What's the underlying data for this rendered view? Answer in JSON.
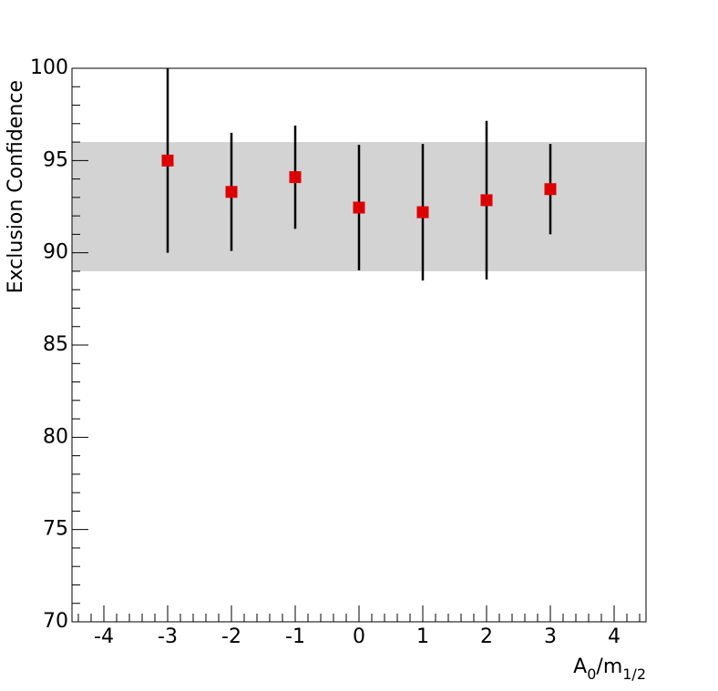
{
  "chart_data": {
    "type": "errorbar",
    "ylabel": "Exclusion Confidence",
    "xlabel": [
      "A",
      "0",
      "/m",
      "1/2"
    ],
    "x": [
      -3,
      -2,
      -1,
      0,
      1,
      2,
      3
    ],
    "values": [
      95.0,
      93.3,
      94.1,
      92.45,
      92.2,
      92.85,
      93.45
    ],
    "errors": [
      5.0,
      3.2,
      2.8,
      3.4,
      3.7,
      4.3,
      2.45
    ],
    "color": "#dd0000",
    "band": [
      89,
      96
    ],
    "band_color": "#d3d3d3",
    "xlim": [
      -4.5,
      4.5
    ],
    "ylim": [
      70,
      100
    ],
    "xticks": [
      -4,
      -3,
      -2,
      -1,
      0,
      1,
      2,
      3,
      4
    ],
    "yticks": [
      70,
      75,
      80,
      85,
      90,
      95,
      100
    ]
  }
}
